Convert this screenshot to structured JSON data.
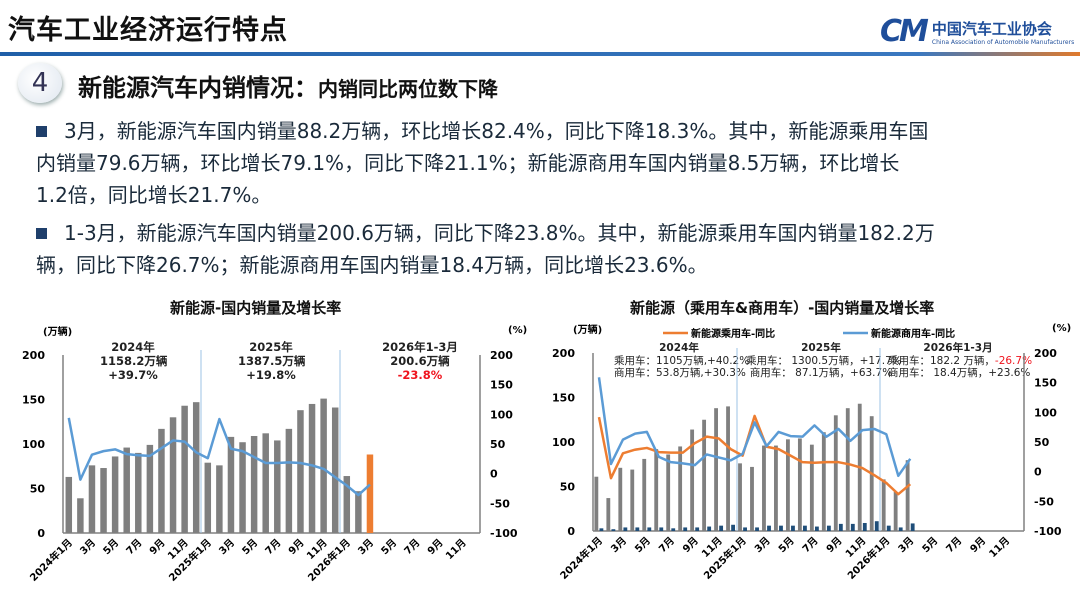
{
  "header": {
    "title": "汽车工业经济运行特点",
    "logo_mark": "CM",
    "logo_cn": "中国汽车工业协会",
    "logo_en": "China Association of Automobile Manufacturers"
  },
  "section": {
    "number": "4",
    "title": "新能源汽车内销情况：",
    "subtitle": "内销同比两位数下降"
  },
  "bullets": [
    {
      "lines": [
        "3月，新能源汽车国内销量88.2万辆，环比增长82.4%，同比下降18.3%。其中，新能源乘用车国",
        "内销量79.6万辆，环比增长79.1%，同比下降21.1%；新能源商用车国内销量8.5万辆，环比增长",
        "1.2倍，同比增长21.7%。"
      ]
    },
    {
      "lines": [
        "1-3月，新能源汽车国内销量200.6万辆，同比下降23.8%。其中，新能源乘用车国内销量182.2万",
        "辆，同比下降26.7%；新能源商用车国内销量18.4万辆，同比增长23.6%。"
      ]
    }
  ],
  "colors": {
    "bar": "#7f7f7f",
    "highlight_bar": "#ed7d31",
    "line_blue": "#5b9bd5",
    "line_orange": "#ed7d31",
    "commercial_bar": "#1f4e79",
    "negative": "#f0141e"
  },
  "chart_data": [
    {
      "type": "bar+line",
      "title": "新能源-国内销量及增长率",
      "ylabel": "(万辆)",
      "y2label": "(%)",
      "ylim": [
        0,
        200
      ],
      "y2lim": [
        -100,
        200
      ],
      "yticks": [
        "0",
        "50",
        "100",
        "150",
        "200"
      ],
      "y2ticks": [
        "-100",
        "-50",
        "0",
        "50",
        "100",
        "150",
        "200"
      ],
      "xticks": [
        "2024年1月",
        "3月",
        "5月",
        "7月",
        "9月",
        "11月",
        "2025年1月",
        "3月",
        "5月",
        "7月",
        "9月",
        "11月",
        "2026年1月",
        "3月",
        "5月",
        "7月",
        "9月",
        "11月"
      ],
      "annotations": [
        {
          "year": "2024年",
          "value": "1158.2万辆",
          "growth": "+39.7%"
        },
        {
          "year": "2025年",
          "value": "1387.5万辆",
          "growth": "+19.8%"
        },
        {
          "year": "2026年1-3月",
          "value": "200.6万辆",
          "growth": "-23.8%"
        }
      ],
      "series": [
        {
          "kind": "bar",
          "values": [
            63,
            39,
            76,
            73,
            86,
            96,
            90,
            99,
            117,
            130,
            143,
            147,
            79,
            76,
            108,
            102,
            109,
            112,
            104,
            117,
            138,
            145,
            151,
            141,
            64,
            47,
            88.2
          ],
          "highlight_last": true
        },
        {
          "kind": "line",
          "axis": "right",
          "values": [
            94,
            -10,
            32,
            38,
            41,
            33,
            31,
            30,
            43,
            56,
            54,
            36,
            26,
            92,
            42,
            38,
            28,
            18,
            18,
            19,
            18,
            14,
            8,
            -6,
            -20,
            -36,
            -18.3
          ]
        }
      ]
    },
    {
      "type": "bar+line",
      "title": "新能源（乘用车&商用车）-国内销量及增长率",
      "ylabel": "(万辆)",
      "y2label": "(%)",
      "ylim": [
        0,
        200
      ],
      "y2lim": [
        -100,
        200
      ],
      "yticks": [
        "0",
        "50",
        "100",
        "150",
        "200"
      ],
      "y2ticks": [
        "-100",
        "-50",
        "0",
        "50",
        "100",
        "150",
        "200"
      ],
      "xticks": [
        "2024年1月",
        "3月",
        "5月",
        "7月",
        "9月",
        "11月",
        "2025年1月",
        "3月",
        "5月",
        "7月",
        "9月",
        "11月",
        "2026年1月",
        "3月",
        "5月",
        "7月",
        "9月",
        "11月"
      ],
      "legend": [
        "新能源乘用车-同比",
        "新能源商用车-同比"
      ],
      "annotations": [
        {
          "year": "2024年",
          "passenger": "乘用车：1105万辆,+40.2%",
          "commercial": "商用车：53.8万辆,+30.3%"
        },
        {
          "year": "2025年",
          "passenger": "乘用车：  1300.5万辆，+17.7%",
          "commercial": "商用车：  87.1万辆，+63.7%"
        },
        {
          "year": "2026年1-3月",
          "passenger": "乘用车：182.2 万辆，",
          "passenger_growth": "-26.7%",
          "commercial": "商用车：  18.4万辆，+23.6%"
        }
      ],
      "series": [
        {
          "kind": "bar",
          "name": "乘用车",
          "values": [
            61,
            37,
            71,
            69,
            81,
            92,
            86,
            95,
            114,
            125,
            138,
            140,
            76,
            72,
            96,
            96,
            103,
            104,
            97,
            111,
            130,
            138,
            143,
            129,
            58,
            44,
            79.6
          ]
        },
        {
          "kind": "bar",
          "name": "商用车",
          "values": [
            3,
            2,
            4,
            4,
            4,
            4,
            3,
            4,
            4,
            5,
            6,
            7,
            4,
            4,
            6,
            6,
            6,
            6,
            5,
            6,
            8,
            8,
            9,
            11,
            6,
            4,
            8.5
          ]
        },
        {
          "kind": "line",
          "axis": "right",
          "name": "新能源乘用车-同比",
          "values": [
            92,
            -11,
            31,
            37,
            40,
            33,
            32,
            32,
            48,
            59,
            56,
            38,
            27,
            94,
            42,
            38,
            27,
            16,
            15,
            16,
            16,
            12,
            6,
            -6,
            -19,
            -38,
            -21.1
          ]
        },
        {
          "kind": "line",
          "axis": "right",
          "name": "新能源商用车-同比",
          "values": [
            159,
            13,
            54,
            64,
            67,
            25,
            16,
            14,
            11,
            29,
            24,
            19,
            30,
            83,
            43,
            67,
            60,
            59,
            78,
            59,
            72,
            52,
            70,
            72,
            63,
            -7,
            21.7
          ]
        }
      ]
    }
  ]
}
